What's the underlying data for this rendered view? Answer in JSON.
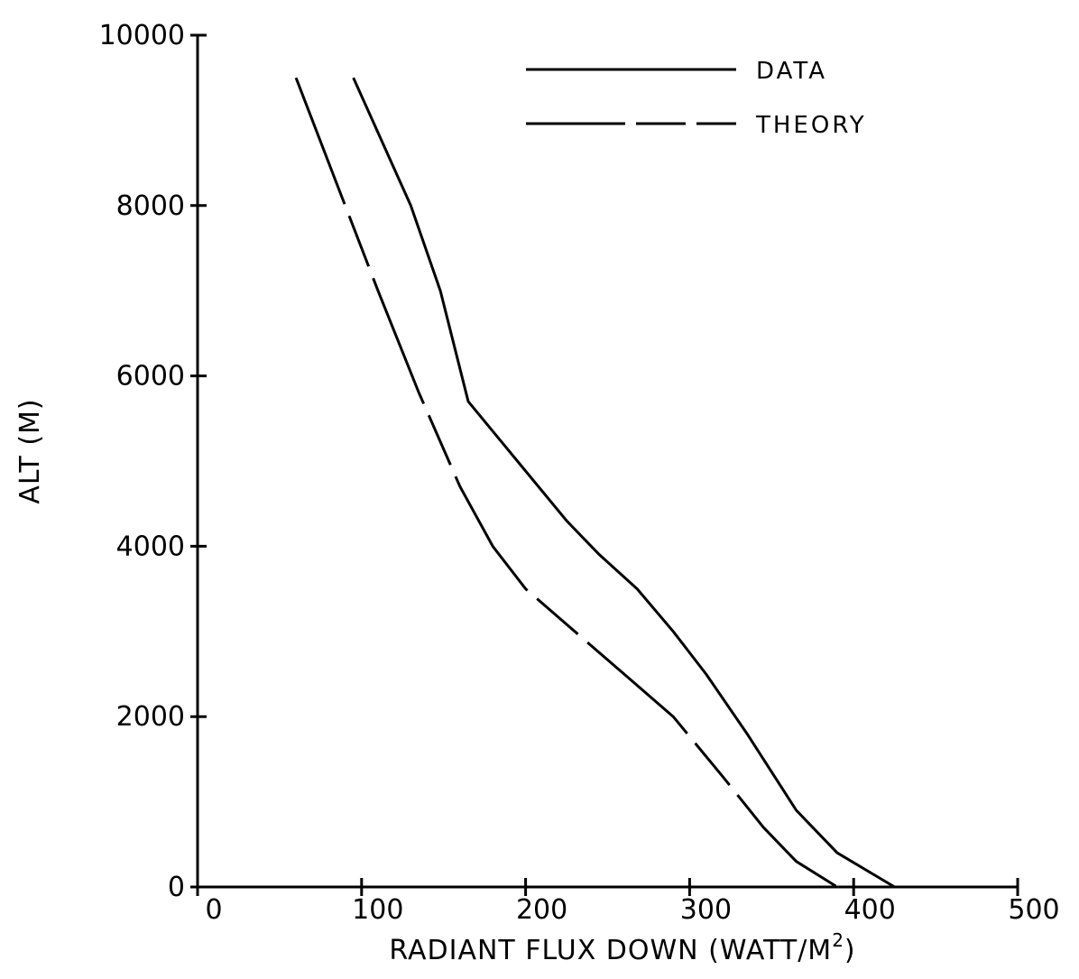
{
  "chart_data": {
    "type": "line",
    "title": "",
    "xlabel": "RADIANT FLUX DOWN (WATT/M",
    "xlabel_superscript": "2",
    "xlabel_suffix": ")",
    "ylabel": "ALT (M)",
    "xlim": [
      0,
      500
    ],
    "ylim": [
      0,
      10000
    ],
    "x_ticks": [
      0,
      100,
      200,
      300,
      400,
      500
    ],
    "y_ticks": [
      0,
      2000,
      4000,
      6000,
      8000,
      10000
    ],
    "x_tick_labels": [
      "0",
      "100",
      "200",
      "300",
      "400",
      "500"
    ],
    "y_tick_labels": [
      "0",
      "2000",
      "4000",
      "6000",
      "8000",
      "10000"
    ],
    "grid": false,
    "legend": "top-right",
    "series": [
      {
        "name": "DATA",
        "style": "solid",
        "color": "#000000",
        "points": [
          [
            95,
            9500
          ],
          [
            130,
            8000
          ],
          [
            148,
            7000
          ],
          [
            165,
            5700
          ],
          [
            195,
            5000
          ],
          [
            225,
            4300
          ],
          [
            245,
            3900
          ],
          [
            268,
            3500
          ],
          [
            290,
            3000
          ],
          [
            310,
            2500
          ],
          [
            335,
            1800
          ],
          [
            365,
            900
          ],
          [
            390,
            400
          ],
          [
            425,
            0
          ]
        ]
      },
      {
        "name": "THEORY",
        "style": "dashed",
        "color": "#000000",
        "points": [
          [
            60,
            9500
          ],
          [
            90,
            8000
          ],
          [
            110,
            7000
          ],
          [
            135,
            5800
          ],
          [
            160,
            4700
          ],
          [
            180,
            4000
          ],
          [
            200,
            3500
          ],
          [
            230,
            3000
          ],
          [
            260,
            2500
          ],
          [
            290,
            2000
          ],
          [
            320,
            1300
          ],
          [
            345,
            700
          ],
          [
            365,
            300
          ],
          [
            390,
            0
          ]
        ]
      }
    ]
  }
}
